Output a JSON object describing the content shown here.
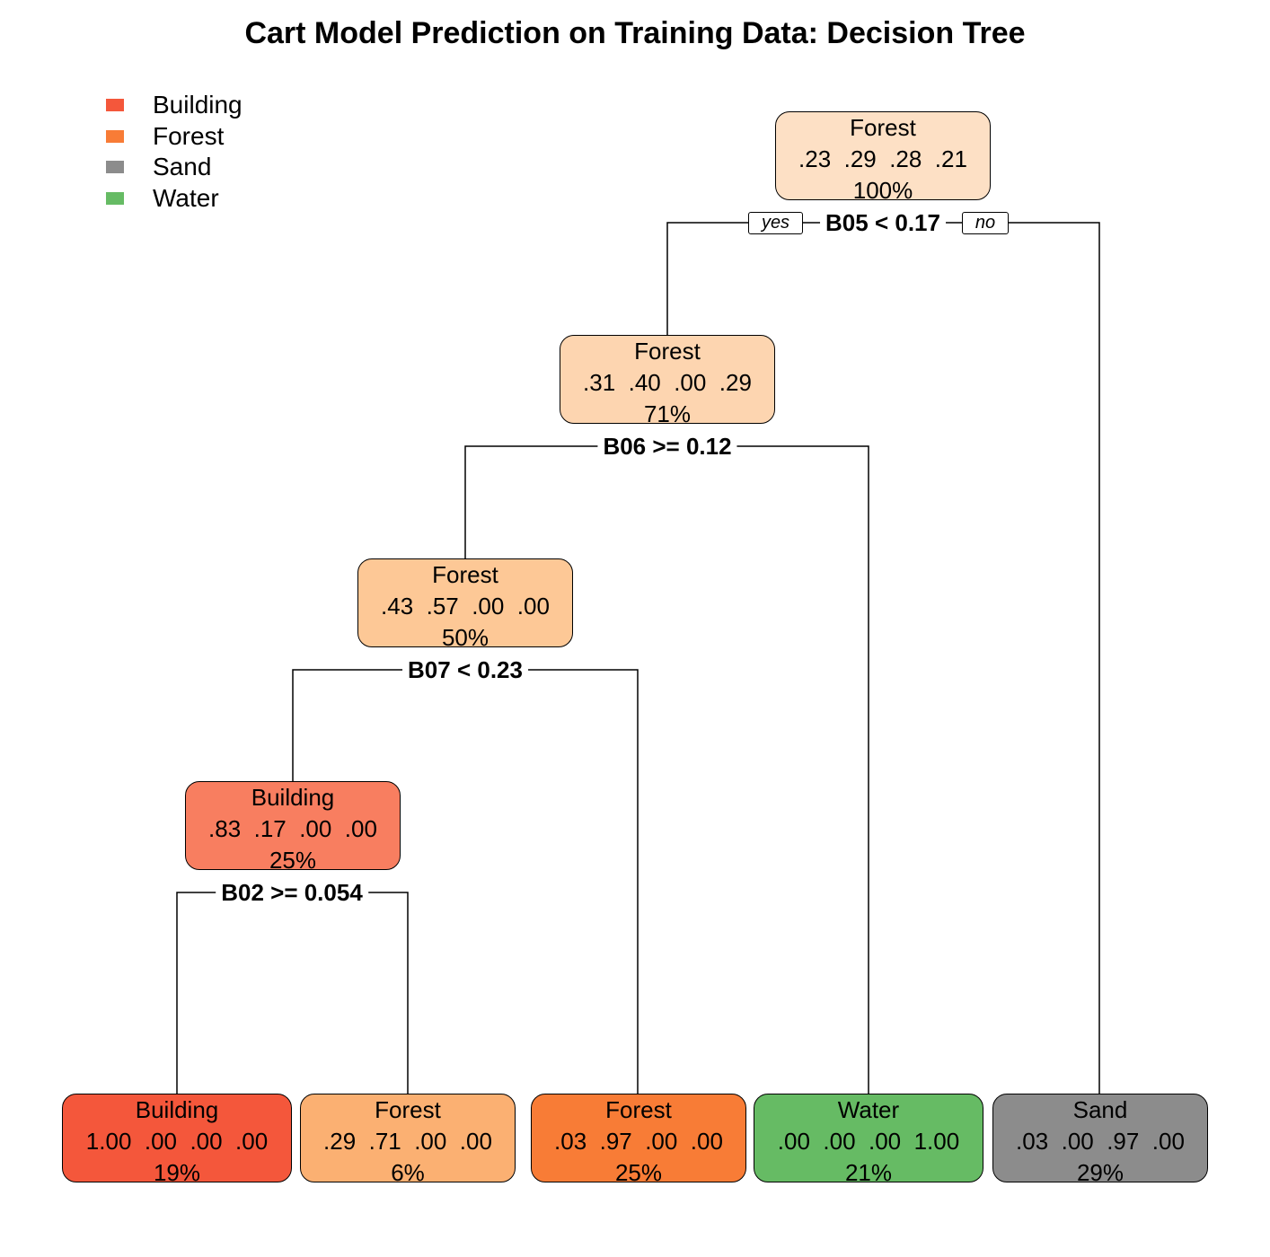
{
  "title": "Cart Model Prediction on Training Data: Decision Tree",
  "legend": [
    {
      "label": "Building",
      "color": "#f4573b"
    },
    {
      "label": "Forest",
      "color": "#f87c36"
    },
    {
      "label": "Sand",
      "color": "#8c8c8c"
    },
    {
      "label": "Water",
      "color": "#66bb64"
    }
  ],
  "nodes": {
    "root": {
      "class": "Forest",
      "probs": ".23  .29  .28  .21",
      "pct": "100%",
      "color": "#fde0c5"
    },
    "n2": {
      "class": "Forest",
      "probs": ".31  .40  .00  .29",
      "pct": "71%",
      "color": "#fdd5b0"
    },
    "n4": {
      "class": "Forest",
      "probs": ".43  .57  .00  .00",
      "pct": "50%",
      "color": "#fdc896"
    },
    "n8": {
      "class": "Building",
      "probs": ".83  .17  .00  .00",
      "pct": "25%",
      "color": "#f87e60"
    },
    "leaf_bld": {
      "class": "Building",
      "probs": "1.00  .00  .00  .00",
      "pct": "19%",
      "color": "#f4573b"
    },
    "leaf_for1": {
      "class": "Forest",
      "probs": ".29  .71  .00  .00",
      "pct": "6%",
      "color": "#fbb072"
    },
    "leaf_for2": {
      "class": "Forest",
      "probs": ".03  .97  .00  .00",
      "pct": "25%",
      "color": "#f87c36"
    },
    "leaf_wat": {
      "class": "Water",
      "probs": ".00  .00  .00  1.00",
      "pct": "21%",
      "color": "#66bb64"
    },
    "leaf_snd": {
      "class": "Sand",
      "probs": ".03  .00  .97  .00",
      "pct": "29%",
      "color": "#8c8c8c"
    }
  },
  "splits": {
    "s1": "B05 < 0.17",
    "s2": "B06 >= 0.12",
    "s3": "B07 < 0.23",
    "s4": "B02 >= 0.054"
  },
  "branch_labels": {
    "yes": "yes",
    "no": "no"
  }
}
